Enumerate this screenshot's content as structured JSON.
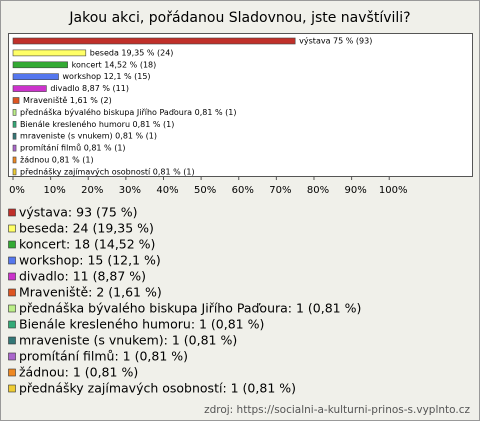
{
  "chart_data": {
    "type": "bar",
    "orientation": "horizontal",
    "title": "Jakou akci, pořádanou Sladovnou, jste navštívili?",
    "categories": [
      "výstava",
      "beseda",
      "koncert",
      "workshop",
      "divadlo",
      "Mraveniště",
      "přednáška bývalého biskupa Jiřího Paďoura",
      "Bienále kresleného humoru",
      "mraveniste (s vnukem)",
      "promítání filmů",
      "žádnou",
      "přednášky zajímavých osobností"
    ],
    "values": [
      75,
      19.35,
      14.52,
      12.1,
      8.87,
      1.61,
      0.81,
      0.81,
      0.81,
      0.81,
      0.81,
      0.81
    ],
    "value_labels": [
      "výstava 75 % (93)",
      "beseda 19,35 % (24)",
      "koncert 14,52 % (18)",
      "workshop 12,1 % (15)",
      "divadlo 8,87 % (11)",
      "Mraveniště 1,61 % (2)",
      "přednáška bývalého biskupa Jiřího Paďoura 0,81 % (1)",
      "Bienále kresleného humoru 0,81 % (1)",
      "mraveniste (s vnukem) 0,81 % (1)",
      "promítání filmů 0,81 % (1)",
      "žádnou 0,81 % (1)",
      "přednášky zajímavých osobností 0,81 % (1)"
    ],
    "legend_labels": [
      "výstava: 93 (75 %)",
      "beseda: 24 (19,35 %)",
      "koncert: 18 (14,52 %)",
      "workshop: 15 (12,1 %)",
      "divadlo: 11 (8,87 %)",
      "Mraveniště: 2 (1,61 %)",
      "přednáška bývalého biskupa Jiřího Paďoura: 1 (0,81 %)",
      "Bienále kresleného humoru: 1 (0,81 %)",
      "mraveniste (s vnukem): 1 (0,81 %)",
      "promítání filmů: 1 (0,81 %)",
      "žádnou: 1 (0,81 %)",
      "přednášky zajímavých osobností: 1 (0,81 %)"
    ],
    "colors": [
      "#c0302a",
      "#ffff66",
      "#33aa33",
      "#5577ee",
      "#cc33cc",
      "#dd5522",
      "#bbee88",
      "#33aa77",
      "#337777",
      "#aa66cc",
      "#ee8822",
      "#eecc33"
    ],
    "xlim": [
      0,
      122
    ],
    "xticks": [
      {
        "value": 0,
        "label": "0%"
      },
      {
        "value": 10,
        "label": "10%"
      },
      {
        "value": 20,
        "label": "20%"
      },
      {
        "value": 30,
        "label": "30%"
      },
      {
        "value": 40,
        "label": "40%"
      },
      {
        "value": 50,
        "label": "50%"
      },
      {
        "value": 60,
        "label": "60%"
      },
      {
        "value": 70,
        "label": "70%"
      },
      {
        "value": 80,
        "label": "80%"
      },
      {
        "value": 90,
        "label": "90%"
      },
      {
        "value": 100,
        "label": "100%"
      }
    ],
    "source": "zdroj: https://socialni-a-kulturni-prinos-s.vyplnto.cz"
  }
}
